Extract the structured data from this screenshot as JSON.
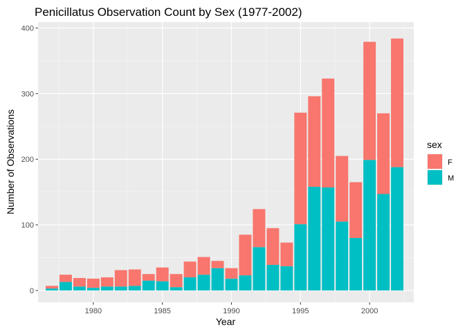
{
  "chart_data": {
    "type": "bar",
    "stacked": true,
    "title": "Penicillatus Observation Count by Sex (1977-2002)",
    "xlabel": "Year",
    "ylabel": "Number of Observations",
    "x": [
      1977,
      1978,
      1979,
      1980,
      1981,
      1982,
      1983,
      1984,
      1985,
      1986,
      1987,
      1988,
      1989,
      1990,
      1991,
      1992,
      1993,
      1994,
      1995,
      1996,
      1997,
      1998,
      1999,
      2000,
      2001,
      2002
    ],
    "xlim": [
      1976,
      2003.2
    ],
    "ylim": [
      -18,
      409
    ],
    "xticks": [
      1980,
      1985,
      1990,
      1995,
      2000
    ],
    "xtick_labels": [
      "1980",
      "1985",
      "1990",
      "1995",
      "2000"
    ],
    "yticks": [
      0,
      100,
      200,
      300,
      400
    ],
    "ytick_labels": [
      "0",
      "100",
      "200",
      "300",
      "400"
    ],
    "grid": true,
    "background": "#ebebeb",
    "legend": {
      "title": "sex",
      "position": "right",
      "items": [
        {
          "label": "F",
          "color": "#f8766d"
        },
        {
          "label": "M",
          "color": "#00bfc4"
        }
      ]
    },
    "series": [
      {
        "name": "M",
        "color": "#00bfc4",
        "values": [
          3,
          13,
          6,
          4,
          6,
          6,
          7,
          15,
          14,
          5,
          20,
          24,
          34,
          18,
          23,
          66,
          39,
          37,
          101,
          158,
          157,
          105,
          80,
          199,
          147,
          188
        ]
      },
      {
        "name": "F",
        "color": "#f8766d",
        "values": [
          4,
          11,
          13,
          14,
          14,
          25,
          25,
          10,
          21,
          20,
          24,
          27,
          11,
          16,
          62,
          58,
          56,
          36,
          170,
          138,
          166,
          100,
          85,
          180,
          123,
          196
        ]
      }
    ]
  }
}
